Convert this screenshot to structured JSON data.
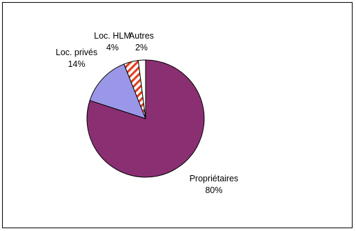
{
  "chart_data": {
    "type": "pie",
    "title": "",
    "slices": [
      {
        "label": "Propriétaires",
        "value": 80,
        "value_label": "80%",
        "color": "#8b2f73",
        "pattern": "solid"
      },
      {
        "label": "Loc. privés",
        "value": 14,
        "value_label": "14%",
        "color": "#9b97e8",
        "pattern": "solid"
      },
      {
        "label": "Loc. HLM",
        "value": 4,
        "value_label": "4%",
        "color": "#e04020",
        "pattern": "diagonal-stripes"
      },
      {
        "label": "Autres",
        "value": 2,
        "value_label": "2%",
        "color": "#ffffff",
        "pattern": "solid"
      }
    ],
    "start_angle": "12 o'clock",
    "direction": "clockwise",
    "legend": "none"
  }
}
